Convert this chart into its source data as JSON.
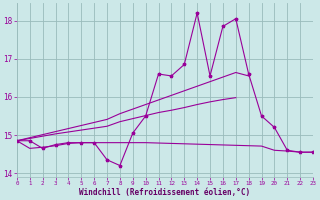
{
  "x_values": [
    0,
    1,
    2,
    3,
    4,
    5,
    6,
    7,
    8,
    9,
    10,
    11,
    12,
    13,
    14,
    15,
    16,
    17,
    18,
    19,
    20,
    21,
    22,
    23
  ],
  "line_zigzag": [
    14.85,
    14.85,
    14.65,
    14.75,
    14.8,
    14.8,
    14.8,
    14.35,
    14.2,
    15.05,
    15.5,
    16.6,
    16.55,
    16.85,
    18.2,
    16.55,
    17.85,
    18.05,
    16.6,
    15.5,
    15.2,
    14.6,
    14.55,
    14.55
  ],
  "line_upper_slope": [
    14.85,
    14.93,
    15.01,
    15.09,
    15.17,
    15.25,
    15.33,
    15.41,
    15.56,
    15.68,
    15.8,
    15.92,
    16.04,
    16.16,
    16.28,
    16.4,
    16.52,
    16.64,
    16.55
  ],
  "line_lower_slope": [
    14.85,
    14.91,
    14.97,
    15.03,
    15.08,
    15.13,
    15.18,
    15.23,
    15.35,
    15.43,
    15.51,
    15.59,
    15.65,
    15.72,
    15.8,
    15.87,
    15.93,
    15.98
  ],
  "line_flat": [
    14.85,
    14.65,
    14.68,
    14.72,
    14.78,
    14.8,
    14.8,
    14.8,
    14.8,
    14.8,
    14.8,
    14.79,
    14.78,
    14.77,
    14.76,
    14.75,
    14.74,
    14.73,
    14.72,
    14.71,
    14.6,
    14.58,
    14.55,
    14.55
  ],
  "bg_color": "#cce8e8",
  "line_color": "#990099",
  "grid_color": "#99bbbb",
  "marker": "*",
  "marker_size": 2.5,
  "line_width": 0.8,
  "xlabel": "Windchill (Refroidissement éolien,°C)",
  "xlabel_color": "#660066",
  "ylim_min": 13.9,
  "ylim_max": 18.45,
  "xlim_min": 0,
  "xlim_max": 23,
  "yticks": [
    14,
    15,
    16,
    17,
    18
  ],
  "xticks": [
    0,
    1,
    2,
    3,
    4,
    5,
    6,
    7,
    8,
    9,
    10,
    11,
    12,
    13,
    14,
    15,
    16,
    17,
    18,
    19,
    20,
    21,
    22,
    23
  ]
}
